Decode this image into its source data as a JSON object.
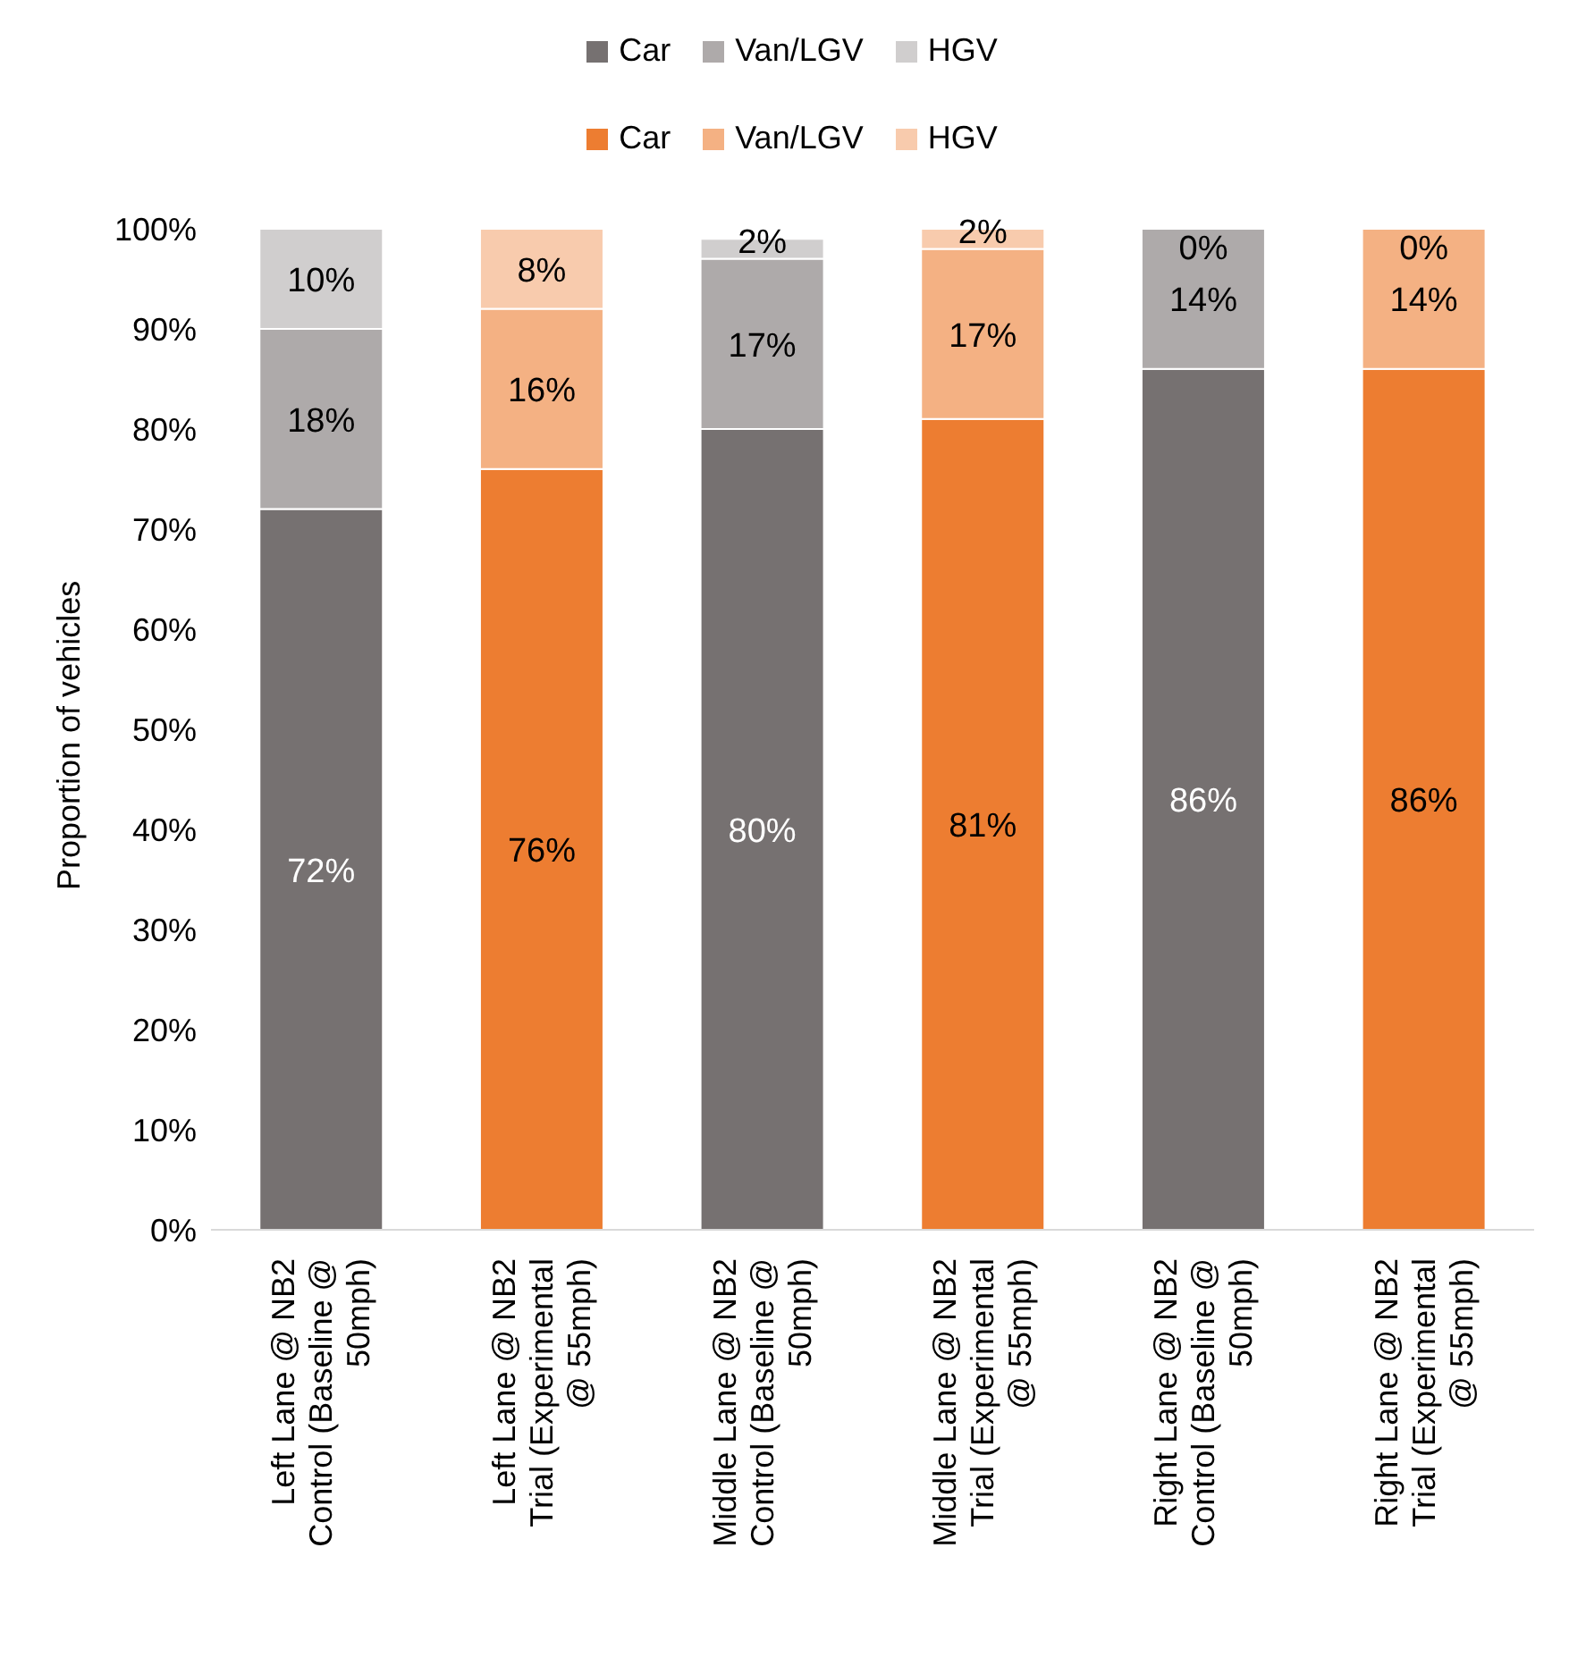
{
  "chart_data": {
    "type": "bar",
    "stacked": true,
    "ylabel": "Proportion of vehicles",
    "categories": [
      "Left Lane @ NB2 Control (Baseline @ 50mph)",
      "Left Lane @ NB2 Trial (Experimental @ 55mph)",
      "Middle Lane @ NB2 Control (Baseline @ 50mph)",
      "Middle Lane @ NB2 Trial (Experimental @ 55mph)",
      "Right Lane @ NB2 Control (Baseline @ 50mph)",
      "Right Lane @ NB2 Trial (Experimental @ 55mph)"
    ],
    "series": [
      {
        "name": "Car",
        "color": "#767171",
        "values": [
          72,
          null,
          80,
          null,
          86,
          null
        ],
        "value_labels": [
          "72%",
          null,
          "80%",
          null,
          "86%",
          null
        ]
      },
      {
        "name": "Van/LGV",
        "color": "#aeaaaa",
        "values": [
          18,
          null,
          17,
          null,
          14,
          null
        ],
        "value_labels": [
          "18%",
          null,
          "17%",
          null,
          "14%",
          null
        ]
      },
      {
        "name": "HGV",
        "color": "#d0cece",
        "values": [
          10,
          null,
          2,
          null,
          0,
          null
        ],
        "value_labels": [
          "10%",
          null,
          "2%",
          null,
          "0%",
          null
        ]
      },
      {
        "name": "Car",
        "color": "#ed7d31",
        "values": [
          null,
          76,
          null,
          81,
          null,
          86
        ],
        "value_labels": [
          null,
          "76%",
          null,
          "81%",
          null,
          "86%"
        ]
      },
      {
        "name": "Van/LGV",
        "color": "#f4b183",
        "values": [
          null,
          16,
          null,
          17,
          null,
          14
        ],
        "value_labels": [
          null,
          "16%",
          null,
          "17%",
          null,
          "14%"
        ]
      },
      {
        "name": "HGV",
        "color": "#f8cbad",
        "values": [
          null,
          8,
          null,
          2,
          null,
          0
        ],
        "value_labels": [
          null,
          "8%",
          null,
          "2%",
          null,
          "0%"
        ]
      }
    ],
    "ylim": [
      0,
      100
    ],
    "yticks": [
      {
        "value": 0,
        "label": "0%"
      },
      {
        "value": 10,
        "label": "10%"
      },
      {
        "value": 20,
        "label": "20%"
      },
      {
        "value": 30,
        "label": "30%"
      },
      {
        "value": 40,
        "label": "40%"
      },
      {
        "value": 50,
        "label": "50%"
      },
      {
        "value": 60,
        "label": "60%"
      },
      {
        "value": 70,
        "label": "70%"
      },
      {
        "value": 80,
        "label": "80%"
      },
      {
        "value": 90,
        "label": "90%"
      },
      {
        "value": 100,
        "label": "100%"
      }
    ],
    "grid": false,
    "legend": "top"
  }
}
